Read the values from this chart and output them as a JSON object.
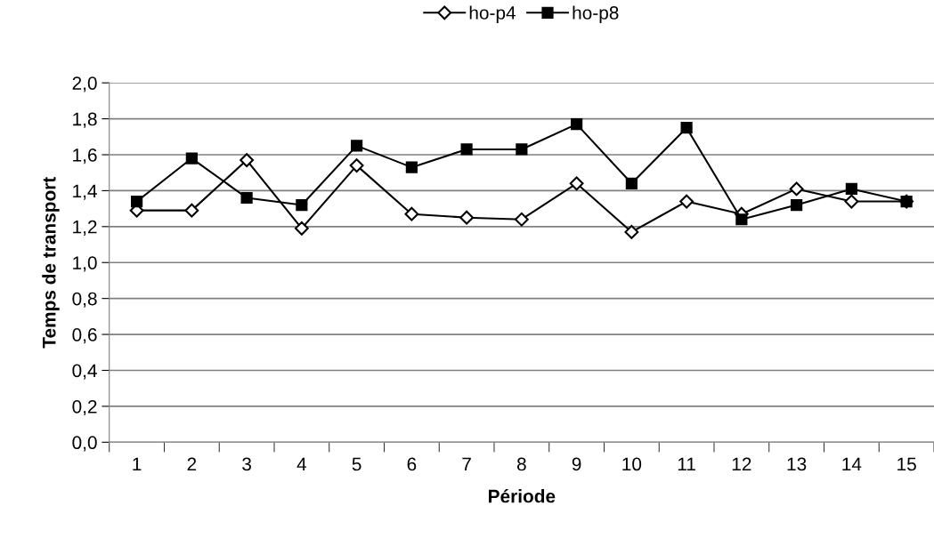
{
  "chart_data": {
    "type": "line",
    "xlabel": "Période",
    "ylabel": "Temps de transport",
    "categories": [
      "1",
      "2",
      "3",
      "4",
      "5",
      "6",
      "7",
      "8",
      "9",
      "10",
      "11",
      "12",
      "13",
      "14",
      "15"
    ],
    "series": [
      {
        "name": "ho-p4",
        "color": "#000000",
        "marker": "diamond",
        "values": [
          1.29,
          1.29,
          1.57,
          1.19,
          1.54,
          1.27,
          1.25,
          1.24,
          1.44,
          1.17,
          1.34,
          1.27,
          1.41,
          1.34,
          1.34
        ]
      },
      {
        "name": "ho-p8",
        "color": "#000000",
        "marker": "square",
        "values": [
          1.34,
          1.58,
          1.36,
          1.32,
          1.65,
          1.53,
          1.63,
          1.63,
          1.77,
          1.44,
          1.75,
          1.24,
          1.32,
          1.41,
          1.34
        ]
      }
    ],
    "ylim": [
      0,
      2.0
    ],
    "yticks": [
      {
        "value": 0,
        "label": "0,0"
      },
      {
        "value": 0.2,
        "label": "0,2"
      },
      {
        "value": 0.4,
        "label": "0,4"
      },
      {
        "value": 0.6,
        "label": "0,6"
      },
      {
        "value": 0.8,
        "label": "0,8"
      },
      {
        "value": 1.0,
        "label": "1,0"
      },
      {
        "value": 1.2,
        "label": "1,2"
      },
      {
        "value": 1.4,
        "label": "1,4"
      },
      {
        "value": 1.6,
        "label": "1,6"
      },
      {
        "value": 1.8,
        "label": "1,8"
      },
      {
        "value": 2.0,
        "label": "2,0"
      }
    ],
    "grid": "y",
    "legend": "top",
    "line_style": "solid"
  }
}
